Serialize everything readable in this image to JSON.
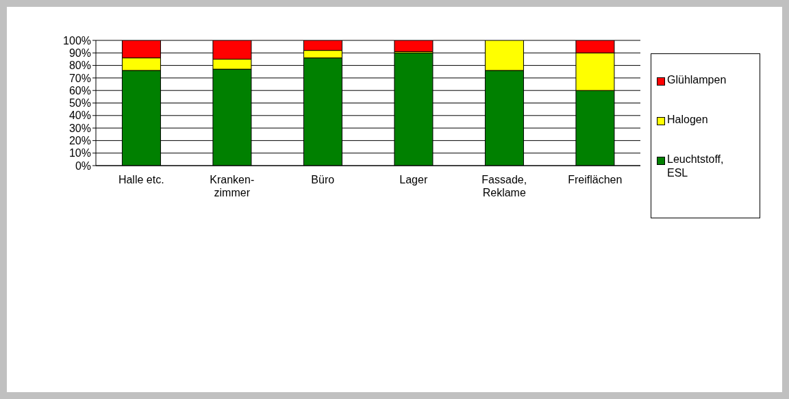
{
  "chart_data": {
    "type": "bar",
    "stacked": true,
    "categories": [
      "Halle etc.",
      "Kranken-\nzimmer",
      "Büro",
      "Lager",
      "Fassade,\nReklame",
      "Freiflächen"
    ],
    "series": [
      {
        "name": "Leuchtstoff,\nESL",
        "color": "#008000",
        "values": [
          76,
          77,
          86,
          90,
          76,
          60
        ]
      },
      {
        "name": "Halogen",
        "color": "#ffff00",
        "values": [
          10,
          8,
          6,
          1,
          24,
          30
        ]
      },
      {
        "name": "Glühlampen",
        "color": "#ff0000",
        "values": [
          14,
          15,
          8,
          9,
          0,
          10
        ]
      }
    ],
    "ylim": [
      0,
      100
    ],
    "yticks": [
      {
        "value": 0,
        "label": "0%"
      },
      {
        "value": 10,
        "label": "10%"
      },
      {
        "value": 20,
        "label": "20%"
      },
      {
        "value": 30,
        "label": "30%"
      },
      {
        "value": 40,
        "label": "40%"
      },
      {
        "value": 50,
        "label": "50%"
      },
      {
        "value": 60,
        "label": "60%"
      },
      {
        "value": 70,
        "label": "70%"
      },
      {
        "value": 80,
        "label": "80%"
      },
      {
        "value": 90,
        "label": "90%"
      },
      {
        "value": 100,
        "label": "100%"
      }
    ],
    "grid": "y",
    "legend": "right"
  }
}
